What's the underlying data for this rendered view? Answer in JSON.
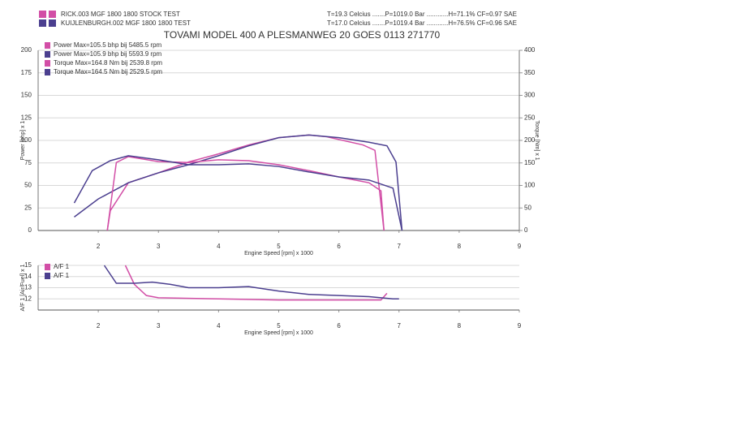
{
  "header": {
    "runs": [
      "RICK.003 MGF 1800  1800  STOCK TEST",
      "KUIJLENBURGH.002 MGF 1800  1800 TEST"
    ],
    "conditions": [
      "T=19.3 Celcius .......P=1019.0 Bar ............H=71.1% CF=0.97 SAE",
      "T=17.0 Celcius .......P=1019.4 Bar ............H=76.5% CF=0.96 SAE"
    ],
    "title": "TOVAMI MODEL 400  A PLESMANWEG 20 GOES 0113 271770"
  },
  "chart_data": [
    {
      "type": "line",
      "x_label": "Engine Speed [rpm] x 1000",
      "y_label": "Power [bhp] x 1",
      "y2_label": "Torque [Nm] x 1",
      "xlim": [
        1,
        9
      ],
      "xticks": [
        2,
        3,
        4,
        5,
        6,
        7,
        8,
        9
      ],
      "ylim": [
        0,
        200
      ],
      "yticks": [
        0,
        25,
        50,
        75,
        100,
        125,
        150,
        175,
        200
      ],
      "y2lim": [
        0,
        400
      ],
      "y2ticks": [
        0,
        50,
        100,
        150,
        200,
        250,
        300,
        350,
        400
      ],
      "grid": true,
      "legend": "top-left",
      "series": [
        {
          "name": "Power Max=105.5 bhp bij 5485.5 rpm",
          "color": "#d24ea6",
          "x": [
            2.15,
            2.2,
            2.5,
            3,
            3.5,
            4,
            4.5,
            5,
            5.5,
            5.8,
            6,
            6.4,
            6.6,
            6.75
          ],
          "values": [
            0,
            22,
            53,
            64,
            76,
            85,
            95,
            103,
            106,
            104,
            101,
            95,
            89,
            0
          ]
        },
        {
          "name": "Power Max=105.9 bhp bij 5593.9 rpm",
          "color": "#4b3f8f",
          "x": [
            1.6,
            2,
            2.5,
            3,
            3.5,
            4,
            4.5,
            5,
            5.5,
            6,
            6.5,
            6.8,
            6.95,
            7.05
          ],
          "values": [
            15,
            35,
            53,
            64,
            73,
            83,
            94,
            103,
            106,
            103,
            98,
            94,
            76,
            0
          ]
        },
        {
          "name": "Torque Max=164.8 Nm bij 2539.8 rpm",
          "color": "#d24ea6",
          "axis": "y2",
          "x": [
            2.15,
            2.3,
            2.5,
            3,
            3.5,
            4,
            4.5,
            5,
            5.5,
            6,
            6.5,
            6.7,
            6.75
          ],
          "values": [
            0,
            151,
            164,
            153,
            151,
            157,
            155,
            146,
            133,
            119,
            106,
            88,
            0
          ]
        },
        {
          "name": "Torque Max=164.5 Nm bij 2529.5 rpm",
          "color": "#4b3f8f",
          "axis": "y2",
          "x": [
            1.6,
            1.9,
            2.2,
            2.5,
            3,
            3.5,
            4,
            4.5,
            5,
            5.5,
            6,
            6.5,
            6.9,
            7.05
          ],
          "values": [
            61,
            133,
            155,
            166,
            157,
            146,
            146,
            148,
            142,
            130,
            119,
            112,
            94,
            0
          ]
        }
      ]
    },
    {
      "type": "line",
      "x_label": "Engine Speed [rpm] x 1000",
      "y_label": "A/F 1 [Air/Fuel] x 1",
      "xlim": [
        1,
        9
      ],
      "xticks": [
        2,
        3,
        4,
        5,
        6,
        7,
        8,
        9
      ],
      "ylim": [
        11,
        15
      ],
      "yticks": [
        12,
        13,
        14,
        15
      ],
      "grid": true,
      "legend": "top-left",
      "series": [
        {
          "name": "A/F 1",
          "color": "#d24ea6",
          "x": [
            2.45,
            2.6,
            2.8,
            3,
            4,
            5,
            6,
            6.7,
            6.8
          ],
          "values": [
            15,
            13.3,
            12.3,
            12.1,
            12.0,
            11.9,
            11.9,
            11.9,
            12.5
          ]
        },
        {
          "name": "A/F 1",
          "color": "#4b3f8f",
          "x": [
            2.1,
            2.3,
            2.6,
            2.9,
            3.2,
            3.5,
            4,
            4.5,
            5,
            5.5,
            6,
            6.5,
            6.9,
            7.0
          ],
          "values": [
            15,
            13.4,
            13.4,
            13.5,
            13.3,
            13.0,
            13.0,
            13.1,
            12.7,
            12.4,
            12.3,
            12.2,
            12.0,
            12.0
          ]
        }
      ]
    }
  ]
}
